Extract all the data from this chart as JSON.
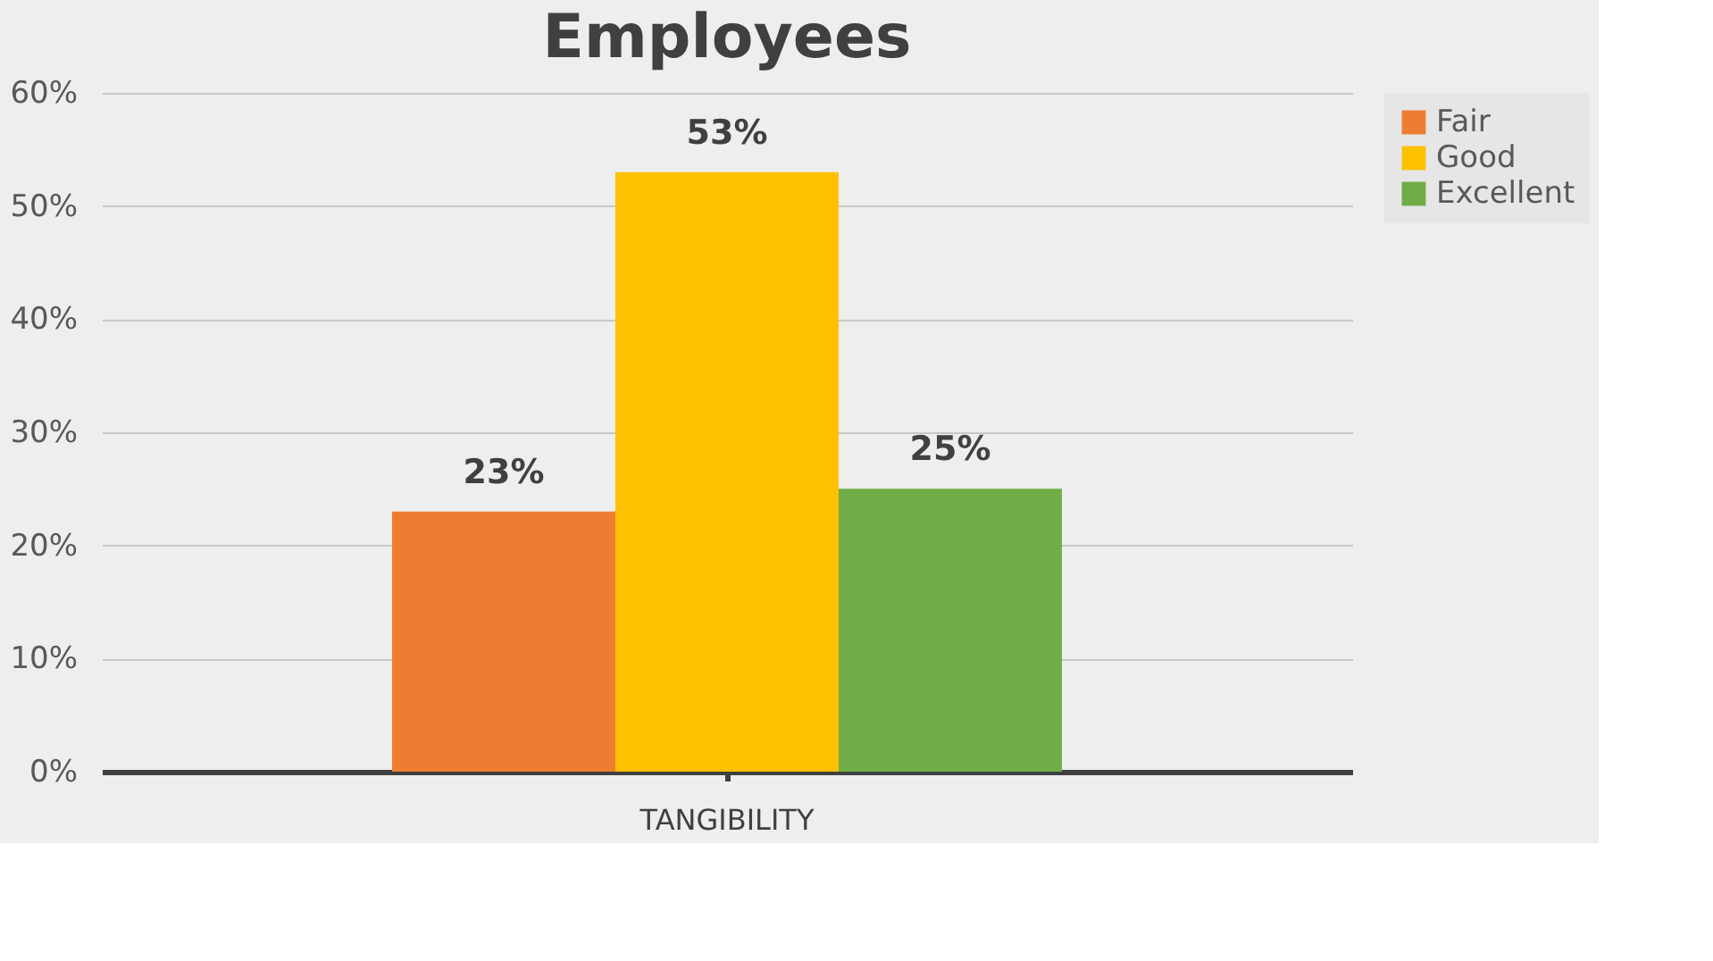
{
  "chart_data": {
    "type": "bar",
    "title": "Employees",
    "categories": [
      "TANGIBILITY"
    ],
    "series": [
      {
        "name": "Fair",
        "color": "#ed7d31",
        "values": [
          23
        ]
      },
      {
        "name": "Good",
        "color": "#ffc000",
        "values": [
          53
        ]
      },
      {
        "name": "Excellent",
        "color": "#70ad47",
        "values": [
          25
        ]
      }
    ],
    "ylim": [
      0,
      60
    ],
    "yticks": [
      {
        "value": 0,
        "label": "0%"
      },
      {
        "value": 10,
        "label": "10%"
      },
      {
        "value": 20,
        "label": "20%"
      },
      {
        "value": 30,
        "label": "30%"
      },
      {
        "value": 40,
        "label": "40%"
      },
      {
        "value": 50,
        "label": "50%"
      },
      {
        "value": 60,
        "label": "60%"
      }
    ],
    "value_labels": [
      "23%",
      "53%",
      "25%"
    ],
    "grid": "y",
    "legend": "right"
  }
}
